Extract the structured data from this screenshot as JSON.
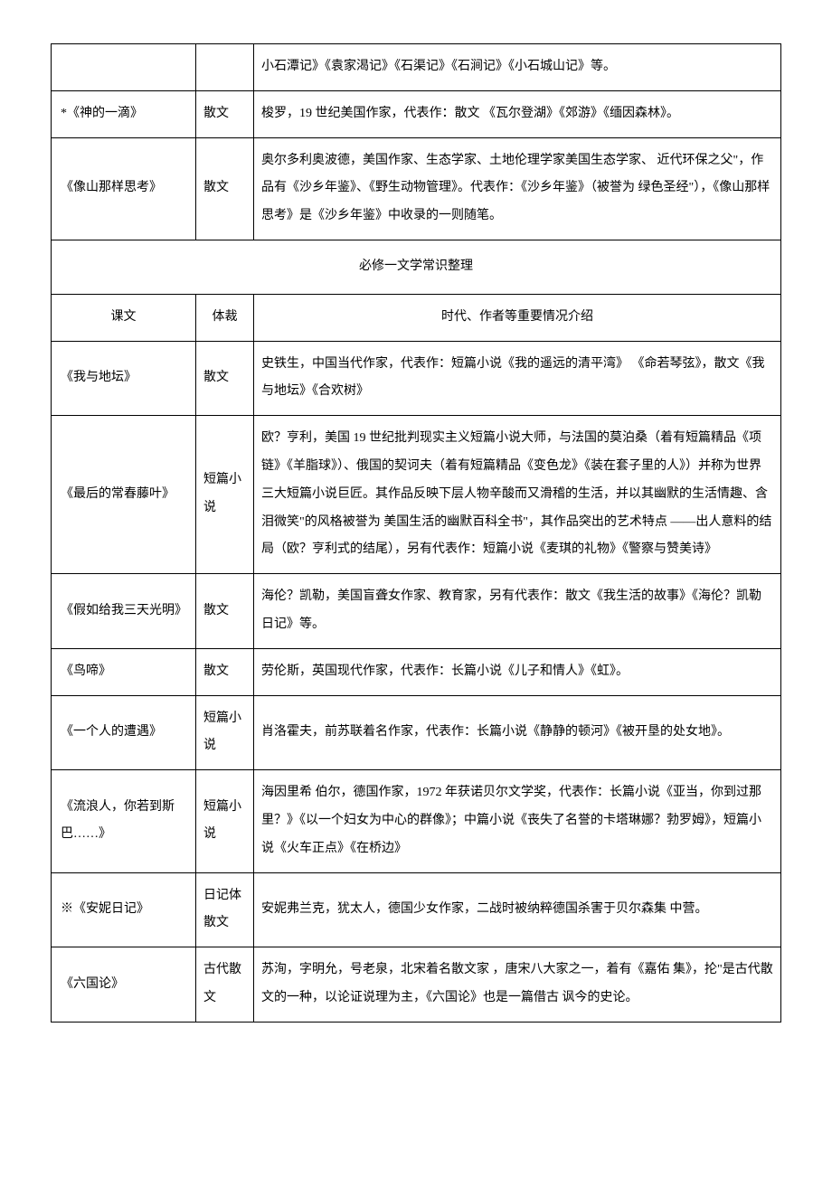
{
  "rowsA": [
    {
      "title": "",
      "genre": "",
      "desc": "小石潭记》《袁家渴记》《石渠记》《石涧记》《小石城山记》等。"
    },
    {
      "title": "*《神的一滴》",
      "genre": "散文",
      "desc": "梭罗，19 世纪美国作家，代表作：散文 《瓦尔登湖》《郊游》《缅因森林》。"
    },
    {
      "title": "《像山那样思考》",
      "genre": "散文",
      "desc": "奥尔多利奥波德，美国作家、生态学家、土地伦理学家美国生态学家、 近代环保之父\"，作品有《沙乡年鉴》、《野生动物管理》。代表作：《沙乡年鉴》（被誉为 绿色圣经\"），《像山那样思考》是《沙乡年鉴》中收录的一则随笔。"
    }
  ],
  "sectionTitle": "必修一文学常识整理",
  "header": {
    "c1": "课文",
    "c2": "体裁",
    "c3": "时代、作者等重要情况介绍"
  },
  "rowsB": [
    {
      "title": "《我与地坛》",
      "genre": "散文",
      "desc": "史铁生，中国当代作家，代表作：短篇小说《我的遥远的清平湾》 《命若琴弦》，散文《我与地坛》《合欢树》"
    },
    {
      "title": "《最后的常春藤叶》",
      "genre": "短篇小说",
      "desc": "欧？亨利，美国 19 世纪批判现实主义短篇小说大师，与法国的莫泊桑（着有短篇精品《项链》《羊脂球》）、俄国的契诃夫（着有短篇精品《变色龙》《装在套子里的人》）并称为世界三大短篇小说巨匠。其作品反映下层人物辛酸而又滑稽的生活，并以其幽默的生活情趣、含泪微笑\"的风格被誉为 美国生活的幽默百科全书\"，其作品突出的艺术特点 ——出人意料的结局（欧？亨利式的结尾），另有代表作：短篇小说《麦琪的礼物》《警察与赞美诗》"
    },
    {
      "title": "《假如给我三天光明》",
      "genre": "散文",
      "desc": "海伦？凯勒，美国盲聋女作家、教育家，另有代表作：散文《我生活的故事》《海伦？凯勒日记》等。"
    },
    {
      "title": "《鸟啼》",
      "genre": "散文",
      "desc": "劳伦斯，英国现代作家，代表作：长篇小说《儿子和情人》《虹》。"
    },
    {
      "title": "《一个人的遭遇》",
      "genre": "短篇小说",
      "desc": "肖洛霍夫，前苏联着名作家，代表作：长篇小说《静静的顿河》《被开垦的处女地》。"
    },
    {
      "title": "《流浪人，你若到斯巴……》",
      "genre": "短篇小说",
      "desc": "海因里希 伯尔，德国作家，1972 年获诺贝尔文学奖，代表作：长篇小说《亚当，你到过那里？》《以一个妇女为中心的群像》；中篇小说《丧失了名誉的卡塔琳娜？勃罗姆》，短篇小说《火车正点》《在桥边》"
    },
    {
      "title": "※《安妮日记》",
      "genre": "日记体散文",
      "desc": "安妮弗兰克，犹太人，德国少女作家，二战时被纳粹德国杀害于贝尔森集 中营。"
    },
    {
      "title": "《六国论》",
      "genre": "古代散文",
      "desc": "苏洵，字明允，号老泉，北宋着名散文家 ，唐宋八大家之一，着有《嘉佑 集》，抡\"是古代散文的一种，以论证说理为主，《六国论》也是一篇借古 讽今的史论。"
    }
  ]
}
